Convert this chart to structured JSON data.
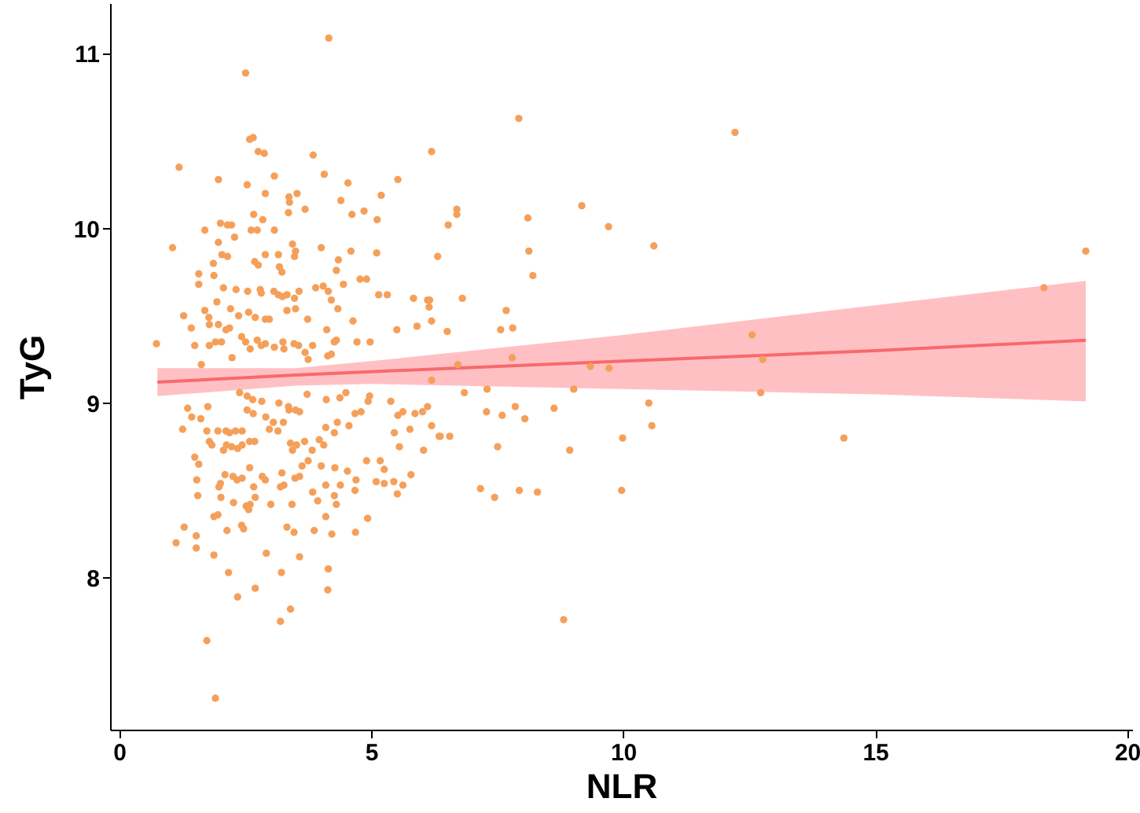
{
  "chart_data": {
    "type": "scatter",
    "xlabel": "NLR",
    "ylabel": "TyG",
    "xlim": [
      -0.18,
      20.1
    ],
    "ylim": [
      7.13,
      11.29
    ],
    "xticks": [
      0,
      5,
      10,
      15,
      20
    ],
    "yticks": [
      8,
      9,
      10,
      11
    ],
    "grid": false,
    "series": [
      {
        "marker": "circle",
        "color": "#f5a05a",
        "x": [
          7.93,
          12.22,
          6.2,
          9.18,
          6.7,
          6.7,
          8.11,
          6.53,
          9.71,
          10.61,
          19.18,
          6.32,
          8.13,
          8.21,
          18.35,
          6.16,
          6.81,
          7.68,
          6.2,
          7.57,
          7.81,
          6.51,
          12.56,
          7.8,
          12.77,
          6.72,
          9.35,
          9.72,
          6.2,
          9.02,
          7.3,
          6.85,
          12.73,
          7.86,
          8.63,
          10.51,
          7.29,
          7.6,
          8.05,
          6.2,
          10.57,
          6.37,
          6.56,
          9.99,
          14.38,
          7.51,
          8.94,
          7.17,
          7.45,
          7.94,
          8.3,
          9.97,
          8.82,
          4.16,
          2.51,
          2.59,
          2.66,
          2.76,
          2.88,
          3.85,
          1.19,
          4.07,
          3.08,
          1.97,
          4.54,
          5.53,
          2.54,
          2.9,
          3.37,
          3.38,
          3.53,
          4.4,
          5.2,
          3.69,
          4.86,
          4.62,
          3.36,
          2.67,
          5.12,
          2.85,
          2.01,
          2.15,
          2.23,
          2.62,
          2.74,
          3.08,
          1.7,
          1.06,
          1.97,
          2.29,
          3.44,
          4.01,
          4.6,
          5.11,
          2.04,
          2.15,
          3.5,
          3.48,
          2.69,
          2.9,
          3.16,
          4.35,
          1.87,
          2.76,
          3.18,
          3.23,
          4.31,
          1.58,
          1.88,
          4.78,
          4.91,
          1.28,
          1.58,
          2.07,
          2.32,
          2.55,
          2.8,
          2.82,
          3.07,
          3.16,
          3.24,
          3.33,
          3.57,
          3.48,
          3.9,
          4.05,
          4.15,
          4.21,
          4.45,
          5.15,
          5.32,
          5.84,
          6.12,
          6.15,
          5.91,
          5.51,
          1.43,
          1.79,
          1.97,
          2.12,
          2.19,
          2.21,
          1.94,
          1.7,
          1.78,
          2.37,
          2.57,
          2.7,
          2.9,
          2.98,
          3.33,
          3.74,
          3.5,
          4.12,
          4.34,
          4.64,
          0.74,
          1.5,
          1.79,
          1.91,
          2.03,
          2.24,
          2.43,
          2.51,
          2.6,
          2.74,
          2.82,
          2.9,
          3.08,
          3.25,
          3.27,
          3.47,
          3.56,
          3.69,
          3.75,
          3.84,
          4.14,
          4.21,
          4.27,
          4.31,
          4.72,
          4.98,
          1.63,
          1.36,
          1.26,
          1.44,
          1.62,
          1.74,
          1.76,
          1.5,
          1.58,
          1.54,
          1.56,
          1.29,
          1.13,
          1.53,
          1.53,
          1.88,
          2.17,
          1.74,
          1.91,
          2.35,
          2.7,
          2.92,
          3.22,
          3.2,
          3.4,
          3.58,
          4.15,
          4.14,
          3.33,
          3.47,
          3.87,
          4.22,
          4.69,
          4.93,
          4.1,
          1.88,
          1.96,
          2.14,
          2.43,
          2.47,
          2.57,
          2.52,
          2.6,
          2.27,
          2.02,
          3.01,
          3.43,
          2.7,
          3.84,
          3.94,
          4.31,
          4.27,
          4.68,
          5.1,
          5.26,
          5.45,
          5.63,
          5.52,
          5.79,
          6.04,
          6.35,
          5.26,
          5.18,
          5.56,
          5.46,
          4.91,
          4.7,
          4.53,
          4.28,
          4.39,
          4.1,
          4.01,
          3.75,
          3.63,
          3.83,
          3.68,
          3.97,
          4.06,
          3.23,
          3.27,
          3.2,
          3.49,
          3.58,
          2.84,
          2.9,
          2.67,
          2.34,
          2.44,
          2.59,
          1.98,
          2.01,
          2.1,
          2.26,
          1.79,
          1.84,
          2.07,
          2.13,
          2.23,
          2.35,
          2.44,
          2.59,
          2.69,
          1.96,
          2.12,
          2.19,
          2.31,
          2.44,
          2.54,
          2.66,
          2.91,
          3.06,
          3.26,
          3.37,
          3.58,
          2.98,
          3.15,
          3.4,
          3.52,
          3.44,
          4.1,
          4.27,
          4.33,
          4.56,
          4.68,
          4.8,
          4.94,
          4.97,
          5.39,
          5.53,
          5.63,
          5.77,
          5.87,
          6.02,
          6.12,
          4.11,
          4.38,
          4.5,
          2.39,
          2.54,
          2.65,
          2.83,
          3.17,
          3.36,
          3.5,
          3.73
        ],
        "values": [
          10.63,
          10.55,
          10.44,
          10.13,
          10.11,
          10.08,
          10.06,
          10.02,
          10.01,
          9.9,
          9.87,
          9.84,
          9.87,
          9.73,
          9.66,
          9.59,
          9.6,
          9.53,
          9.47,
          9.42,
          9.43,
          9.41,
          9.39,
          9.26,
          9.25,
          9.22,
          9.21,
          9.2,
          9.13,
          9.08,
          9.08,
          9.06,
          9.06,
          8.98,
          8.97,
          9.0,
          8.95,
          8.93,
          8.91,
          8.87,
          8.87,
          8.81,
          8.81,
          8.8,
          8.8,
          8.75,
          8.73,
          8.51,
          8.46,
          8.5,
          8.49,
          8.5,
          7.76,
          11.09,
          10.89,
          10.51,
          10.52,
          10.44,
          10.43,
          10.42,
          10.35,
          10.31,
          10.3,
          10.28,
          10.26,
          10.28,
          10.25,
          10.2,
          10.18,
          10.15,
          10.2,
          10.16,
          10.19,
          10.11,
          10.1,
          10.08,
          10.09,
          10.08,
          10.05,
          10.05,
          10.03,
          10.02,
          10.02,
          9.99,
          9.99,
          9.99,
          9.99,
          9.89,
          9.92,
          9.95,
          9.91,
          9.89,
          9.87,
          9.86,
          9.85,
          9.84,
          9.87,
          9.84,
          9.81,
          9.85,
          9.85,
          9.82,
          9.8,
          9.79,
          9.78,
          9.75,
          9.76,
          9.74,
          9.73,
          9.71,
          9.71,
          9.5,
          9.68,
          9.66,
          9.65,
          9.64,
          9.65,
          9.63,
          9.64,
          9.62,
          9.61,
          9.62,
          9.64,
          9.6,
          9.66,
          9.67,
          9.64,
          9.59,
          9.68,
          9.62,
          9.62,
          9.6,
          9.59,
          9.55,
          9.44,
          9.42,
          9.43,
          9.45,
          9.45,
          9.42,
          9.43,
          9.54,
          9.58,
          9.53,
          9.49,
          9.5,
          9.52,
          9.49,
          9.48,
          9.48,
          9.53,
          9.48,
          9.54,
          9.42,
          9.54,
          9.47,
          9.34,
          9.33,
          9.33,
          9.35,
          9.35,
          9.26,
          9.38,
          9.35,
          9.31,
          9.36,
          9.33,
          9.34,
          9.32,
          9.35,
          9.31,
          9.34,
          9.33,
          9.29,
          9.25,
          9.33,
          9.27,
          9.28,
          9.35,
          9.36,
          9.35,
          9.35,
          9.22,
          8.97,
          8.85,
          8.92,
          8.91,
          8.84,
          8.98,
          8.69,
          8.65,
          8.56,
          8.47,
          8.29,
          8.2,
          8.24,
          8.17,
          8.13,
          8.03,
          7.64,
          7.31,
          7.89,
          7.94,
          8.14,
          8.03,
          7.75,
          7.82,
          8.12,
          8.05,
          7.93,
          8.29,
          8.26,
          8.27,
          8.25,
          8.26,
          8.34,
          8.35,
          8.35,
          8.36,
          8.27,
          8.3,
          8.28,
          8.39,
          8.41,
          8.42,
          8.43,
          8.46,
          8.42,
          8.42,
          8.46,
          8.49,
          8.44,
          8.42,
          8.47,
          8.5,
          8.55,
          8.54,
          8.55,
          8.53,
          8.48,
          8.59,
          8.73,
          8.81,
          8.62,
          8.67,
          8.75,
          8.83,
          8.67,
          8.56,
          8.61,
          8.63,
          8.53,
          8.53,
          8.64,
          8.67,
          8.64,
          8.73,
          8.78,
          8.79,
          8.76,
          8.6,
          8.53,
          8.52,
          8.57,
          8.58,
          8.58,
          8.56,
          8.52,
          8.56,
          8.57,
          8.63,
          8.52,
          8.54,
          8.59,
          8.58,
          8.78,
          8.76,
          8.73,
          8.76,
          8.75,
          8.74,
          8.76,
          8.78,
          8.78,
          8.84,
          8.84,
          8.83,
          8.84,
          8.84,
          8.96,
          8.94,
          8.92,
          8.89,
          8.89,
          8.96,
          8.95,
          8.85,
          8.84,
          8.77,
          8.76,
          8.73,
          8.86,
          8.83,
          8.89,
          8.87,
          8.94,
          8.95,
          9.01,
          9.04,
          9.01,
          8.93,
          8.95,
          8.85,
          8.94,
          8.95,
          8.98,
          9.02,
          9.03,
          9.06,
          9.06,
          9.04,
          9.02,
          9.01,
          9.0,
          8.98,
          8.96,
          9.05
        ]
      },
      {
        "type": "line",
        "marker": "none",
        "color": "#f8696b",
        "x": [
          0.76,
          3.5,
          5,
          10,
          15,
          19.18
        ],
        "values": [
          9.12,
          9.16,
          9.18,
          9.24,
          9.3,
          9.36
        ],
        "lower": [
          9.04,
          9.1,
          9.11,
          9.08,
          9.05,
          9.01
        ],
        "upper": [
          9.2,
          9.2,
          9.24,
          9.39,
          9.56,
          9.7
        ]
      }
    ]
  }
}
